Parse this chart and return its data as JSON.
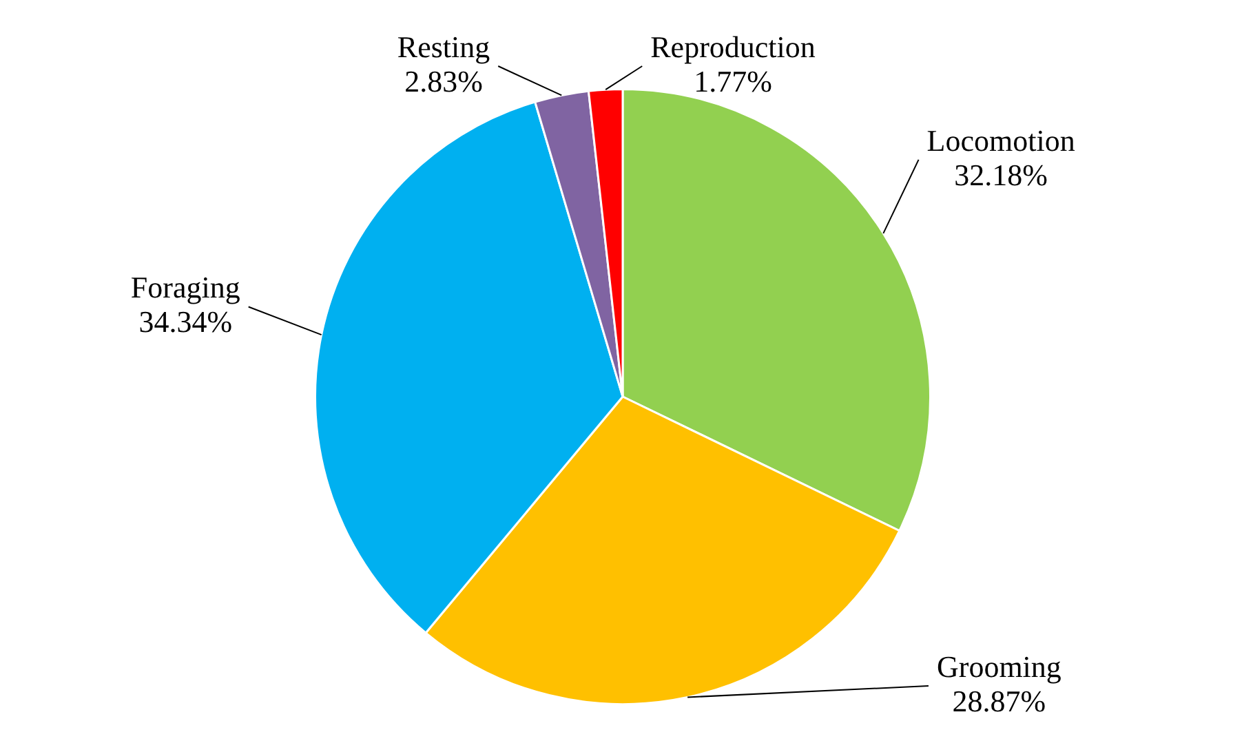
{
  "chart_data": {
    "type": "pie",
    "categories": [
      "Locomotion",
      "Grooming",
      "Foraging",
      "Resting",
      "Reproduction"
    ],
    "values": [
      32.18,
      28.87,
      34.34,
      2.83,
      1.77
    ],
    "colors": [
      "#92d050",
      "#ffc000",
      "#00b0f0",
      "#8064a2",
      "#ff0000"
    ],
    "value_labels": [
      "32.18%",
      "28.87%",
      "34.34%",
      "2.83%",
      "1.77%"
    ],
    "legend": false
  }
}
